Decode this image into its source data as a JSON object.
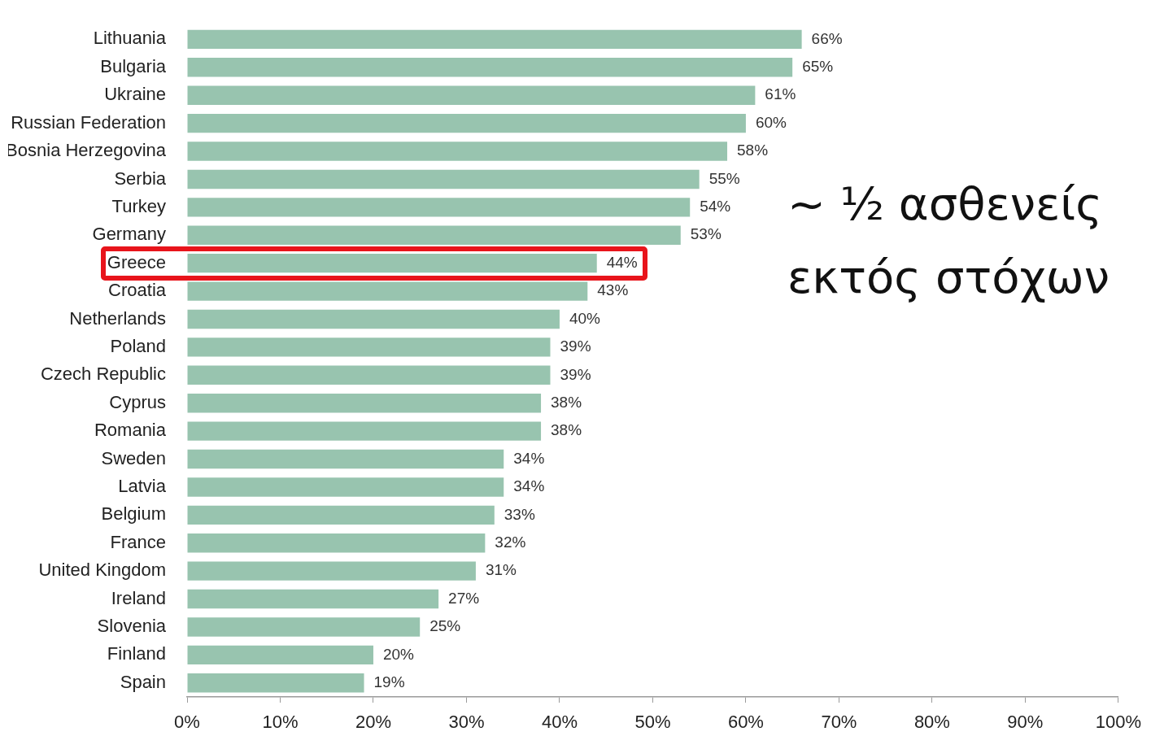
{
  "chart_data": {
    "type": "bar",
    "orientation": "horizontal",
    "categories": [
      "Lithuania",
      "Bulgaria",
      "Ukraine",
      "Russian Federation",
      "Bosnia Herzegovina",
      "Serbia",
      "Turkey",
      "Germany",
      "Greece",
      "Croatia",
      "Netherlands",
      "Poland",
      "Czech Republic",
      "Cyprus",
      "Romania",
      "Sweden",
      "Latvia",
      "Belgium",
      "France",
      "United Kingdom",
      "Ireland",
      "Slovenia",
      "Finland",
      "Spain"
    ],
    "values": [
      66,
      65,
      61,
      60,
      58,
      55,
      54,
      53,
      44,
      43,
      40,
      39,
      39,
      38,
      38,
      34,
      34,
      33,
      32,
      31,
      27,
      25,
      20,
      19
    ],
    "color": "#98c4af",
    "value_labels": [
      "66%",
      "65%",
      "61%",
      "60%",
      "58%",
      "55%",
      "54%",
      "53%",
      "44%",
      "43%",
      "40%",
      "39%",
      "39%",
      "38%",
      "38%",
      "34%",
      "34%",
      "33%",
      "32%",
      "31%",
      "27%",
      "25%",
      "20%",
      "19%"
    ],
    "xlim": [
      0,
      100
    ],
    "xticks": [
      {
        "value": 0,
        "label": "0%"
      },
      {
        "value": 10,
        "label": "10%"
      },
      {
        "value": 20,
        "label": "20%"
      },
      {
        "value": 30,
        "label": "30%"
      },
      {
        "value": 40,
        "label": "40%"
      },
      {
        "value": 50,
        "label": "50%"
      },
      {
        "value": 60,
        "label": "60%"
      },
      {
        "value": 70,
        "label": "70%"
      },
      {
        "value": 80,
        "label": "80%"
      },
      {
        "value": 90,
        "label": "90%"
      },
      {
        "value": 100,
        "label": "100%"
      }
    ],
    "annotations": [
      "~ ½ ασθενείς εκτός στόχων"
    ]
  }
}
